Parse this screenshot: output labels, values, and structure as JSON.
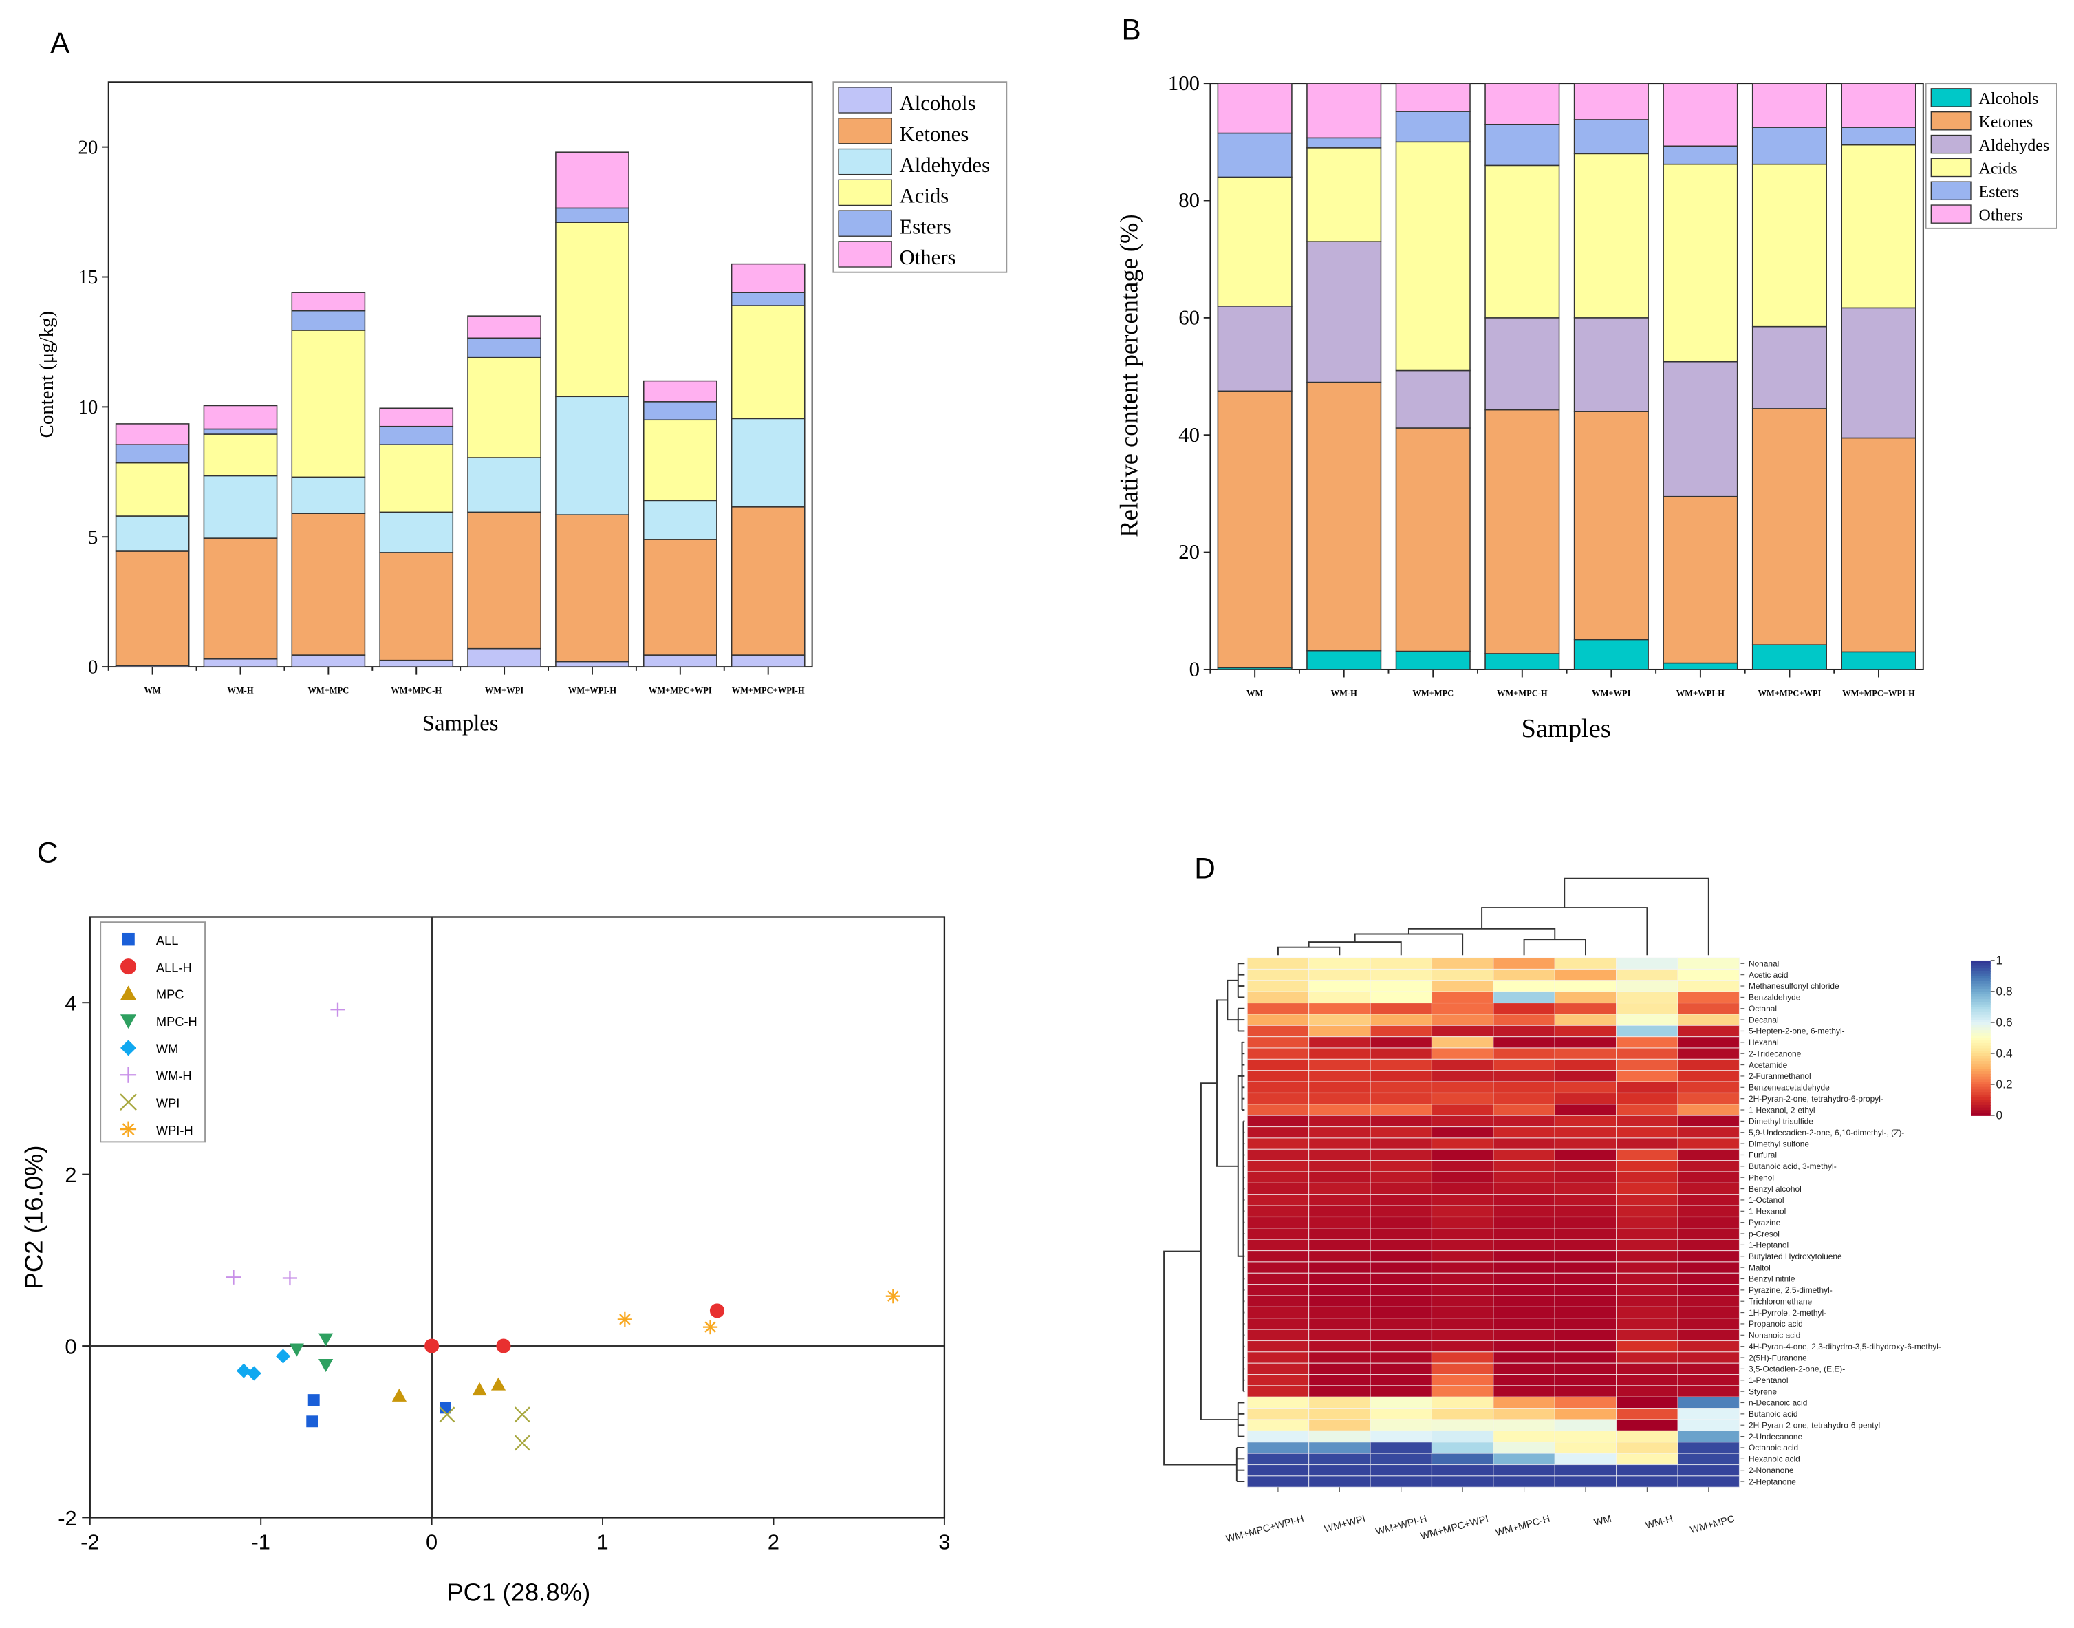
{
  "panels": {
    "a": "A",
    "b": "B",
    "c": "C",
    "d": "D"
  },
  "chart_data": [
    {
      "panel": "A",
      "type": "bar",
      "stacked": true,
      "xlabel": "Samples",
      "ylabel": "Content (μg/kg)",
      "ylim": [
        0,
        22.5
      ],
      "yticks": [
        0,
        5,
        10,
        15,
        20
      ],
      "legend_position": "top-right",
      "categories": [
        "WM",
        "WM-H",
        "WM+MPC",
        "WM+MPC-H",
        "WM+WPI",
        "WM+WPI-H",
        "WM+MPC+WPI",
        "WM+MPC+WPI-H"
      ],
      "series": [
        {
          "name": "Alcohols",
          "color": "#c0c4f8",
          "values": [
            0.05,
            0.3,
            0.45,
            0.25,
            0.7,
            0.2,
            0.45,
            0.45
          ]
        },
        {
          "name": "Ketones",
          "color": "#f4a86a",
          "values": [
            4.4,
            4.65,
            5.45,
            4.15,
            5.25,
            5.65,
            4.45,
            5.7
          ]
        },
        {
          "name": "Aldehydes",
          "color": "#bde8f8",
          "values": [
            1.35,
            2.4,
            1.4,
            1.55,
            2.1,
            4.55,
            1.5,
            3.4
          ]
        },
        {
          "name": "Acids",
          "color": "#ffff9c",
          "values": [
            2.05,
            1.6,
            5.65,
            2.6,
            3.85,
            6.7,
            3.1,
            4.35
          ]
        },
        {
          "name": "Esters",
          "color": "#9ab4f0",
          "values": [
            0.7,
            0.2,
            0.75,
            0.7,
            0.75,
            0.55,
            0.7,
            0.5
          ]
        },
        {
          "name": "Others",
          "color": "#ffb0f0",
          "values": [
            0.8,
            0.9,
            0.7,
            0.7,
            0.85,
            2.15,
            0.8,
            1.1
          ]
        }
      ]
    },
    {
      "panel": "B",
      "type": "bar",
      "stacked": true,
      "xlabel": "Samples",
      "ylabel": "Relative content percentage (%)",
      "ylim": [
        0,
        100
      ],
      "yticks": [
        0,
        20,
        40,
        60,
        80,
        100
      ],
      "legend_position": "top-right",
      "categories": [
        "WM",
        "WM-H",
        "WM+MPC",
        "WM+MPC-H",
        "WM+WPI",
        "WM+WPI-H",
        "WM+MPC+WPI",
        "WM+MPC+WPI-H"
      ],
      "series": [
        {
          "name": "Alcohols",
          "color": "#00c8c8",
          "values": [
            0.3,
            3.2,
            3.1,
            2.7,
            5.1,
            1.1,
            4.2,
            3.0
          ]
        },
        {
          "name": "Ketones",
          "color": "#f4a86a",
          "values": [
            47.2,
            45.8,
            38.1,
            41.6,
            38.9,
            28.4,
            40.3,
            36.5
          ]
        },
        {
          "name": "Aldehydes",
          "color": "#c0b0d8",
          "values": [
            14.5,
            24.0,
            9.8,
            15.7,
            16.0,
            23.0,
            14.0,
            22.2
          ]
        },
        {
          "name": "Acids",
          "color": "#ffffa0",
          "values": [
            22.0,
            16.0,
            39.0,
            26.0,
            28.0,
            33.7,
            27.7,
            27.8
          ]
        },
        {
          "name": "Esters",
          "color": "#9ab4f0",
          "values": [
            7.5,
            1.7,
            5.2,
            7.0,
            5.8,
            3.1,
            6.3,
            3.0
          ]
        },
        {
          "name": "Others",
          "color": "#ffb0f0",
          "values": [
            8.5,
            9.3,
            4.8,
            7.0,
            6.2,
            10.7,
            7.5,
            7.5
          ]
        }
      ]
    },
    {
      "panel": "C",
      "type": "scatter",
      "xlabel": "PC1 (28.8%)",
      "ylabel": "PC2 (16.0%)",
      "xlim": [
        -2,
        3
      ],
      "ylim": [
        -2,
        5
      ],
      "xticks": [
        -2,
        -1,
        0,
        1,
        2,
        3
      ],
      "yticks": [
        -2,
        0,
        2,
        4
      ],
      "legend_position": "top-left",
      "series": [
        {
          "name": "ALL",
          "marker": "square",
          "color": "#1a5fd8",
          "points": [
            [
              -0.69,
              -0.63
            ],
            [
              -0.7,
              -0.88
            ],
            [
              0.08,
              -0.72
            ]
          ]
        },
        {
          "name": "ALL-H",
          "marker": "circle",
          "color": "#e83030",
          "points": [
            [
              0.0,
              0.0
            ],
            [
              0.42,
              0.0
            ],
            [
              1.67,
              0.41
            ]
          ]
        },
        {
          "name": "MPC",
          "marker": "triangle-up",
          "color": "#c8960a",
          "points": [
            [
              -0.19,
              -0.58
            ],
            [
              0.28,
              -0.51
            ],
            [
              0.39,
              -0.45
            ]
          ]
        },
        {
          "name": "MPC-H",
          "marker": "triangle-down",
          "color": "#2ea060",
          "points": [
            [
              -0.62,
              0.08
            ],
            [
              -0.79,
              -0.04
            ],
            [
              -0.62,
              -0.22
            ]
          ]
        },
        {
          "name": "WM",
          "marker": "diamond",
          "color": "#10a8f0",
          "points": [
            [
              -1.1,
              -0.29
            ],
            [
              -1.04,
              -0.32
            ],
            [
              -0.87,
              -0.12
            ]
          ]
        },
        {
          "name": "WM-H",
          "marker": "plus",
          "color": "#c890e8",
          "points": [
            [
              -1.16,
              0.8
            ],
            [
              -0.83,
              0.79
            ],
            [
              -0.55,
              3.92
            ]
          ]
        },
        {
          "name": "WPI",
          "marker": "x",
          "color": "#a8a840",
          "points": [
            [
              0.09,
              -0.8
            ],
            [
              0.53,
              -0.8
            ],
            [
              0.53,
              -1.13
            ]
          ]
        },
        {
          "name": "WPI-H",
          "marker": "asterisk",
          "color": "#f8a820",
          "points": [
            [
              1.13,
              0.31
            ],
            [
              1.63,
              0.22
            ],
            [
              2.7,
              0.58
            ]
          ]
        }
      ]
    },
    {
      "panel": "D",
      "type": "heatmap",
      "colormap": "RdYlBu reversed",
      "colorbar_ticks": [
        "1",
        "0.8",
        "0.6",
        "0.4",
        "0.2",
        "0"
      ],
      "clim": [
        0,
        1
      ],
      "columns": [
        "WM+MPC+WPI-H",
        "WM+WPI",
        "WM+WPI-H",
        "WM+MPC+WPI",
        "WM+MPC-H",
        "WM",
        "WM-H",
        "WM+MPC"
      ],
      "rows": [
        "Nonanal",
        "Acetic acid",
        "Methanesulfonyl chloride",
        "Benzaldehyde",
        "Octanal",
        "Decanal",
        "5-Hepten-2-one, 6-methyl-",
        "Hexanal",
        "2-Tridecanone",
        "Acetamide",
        "2-Furanmethanol",
        "Benzeneacetaldehyde",
        "2H-Pyran-2-one, tetrahydro-6-propyl-",
        "1-Hexanol, 2-ethyl-",
        "Dimethyl trisulfide",
        "5,9-Undecadien-2-one, 6,10-dimethyl-, (Z)-",
        "Dimethyl sulfone",
        "Furfural",
        "Butanoic acid, 3-methyl-",
        "Phenol",
        "Benzyl alcohol",
        "1-Octanol",
        "1-Hexanol",
        "Pyrazine",
        "p-Cresol",
        "1-Heptanol",
        "Butylated Hydroxytoluene",
        "Maltol",
        "Benzyl nitrile",
        "Pyrazine, 2,5-dimethyl-",
        "Trichloromethane",
        "1H-Pyrrole, 2-methyl-",
        "Propanoic acid",
        "Nonanoic acid",
        "4H-Pyran-4-one, 2,3-dihydro-3,5-dihydroxy-6-methyl-",
        "2(5H)-Furanone",
        "3,5-Octadien-2-one, (E,E)-",
        "1-Pentanol",
        "Styrene",
        "n-Decanoic acid",
        "Butanoic acid",
        "2H-Pyran-2-one, tetrahydro-6-pentyl-",
        "2-Undecanone",
        "Octanoic acid",
        "Hexanoic acid",
        "2-Nonanone",
        "2-Heptanone"
      ],
      "values": [
        [
          0.42,
          0.47,
          0.45,
          0.36,
          0.28,
          0.43,
          0.58,
          0.52
        ],
        [
          0.43,
          0.45,
          0.46,
          0.43,
          0.37,
          0.3,
          0.44,
          0.5
        ],
        [
          0.42,
          0.5,
          0.5,
          0.36,
          0.5,
          0.5,
          0.53,
          0.47
        ],
        [
          0.37,
          0.47,
          0.5,
          0.2,
          0.72,
          0.33,
          0.44,
          0.2
        ],
        [
          0.18,
          0.2,
          0.15,
          0.2,
          0.1,
          0.15,
          0.43,
          0.16
        ],
        [
          0.3,
          0.36,
          0.3,
          0.24,
          0.18,
          0.35,
          0.52,
          0.38
        ],
        [
          0.15,
          0.3,
          0.13,
          0.05,
          0.05,
          0.08,
          0.72,
          0.06
        ],
        [
          0.15,
          0.06,
          0.02,
          0.34,
          0.01,
          0.01,
          0.2,
          0.01
        ],
        [
          0.13,
          0.09,
          0.07,
          0.21,
          0.14,
          0.15,
          0.15,
          0.02
        ],
        [
          0.1,
          0.12,
          0.12,
          0.07,
          0.12,
          0.09,
          0.17,
          0.09
        ],
        [
          0.1,
          0.11,
          0.09,
          0.06,
          0.06,
          0.04,
          0.2,
          0.1
        ],
        [
          0.11,
          0.11,
          0.12,
          0.12,
          0.11,
          0.12,
          0.08,
          0.12
        ],
        [
          0.12,
          0.12,
          0.12,
          0.14,
          0.12,
          0.08,
          0.1,
          0.15
        ],
        [
          0.17,
          0.2,
          0.2,
          0.09,
          0.16,
          0.01,
          0.14,
          0.25
        ],
        [
          0.02,
          0.04,
          0.03,
          0.05,
          0.05,
          0.08,
          0.07,
          0.01
        ],
        [
          0.04,
          0.06,
          0.07,
          0.01,
          0.08,
          0.08,
          0.09,
          0.06
        ],
        [
          0.07,
          0.06,
          0.05,
          0.08,
          0.05,
          0.06,
          0.05,
          0.08
        ],
        [
          0.05,
          0.05,
          0.05,
          0.01,
          0.07,
          0.01,
          0.14,
          0.02
        ],
        [
          0.06,
          0.05,
          0.06,
          0.03,
          0.06,
          0.05,
          0.1,
          0.04
        ],
        [
          0.05,
          0.04,
          0.05,
          0.02,
          0.05,
          0.04,
          0.08,
          0.03
        ],
        [
          0.04,
          0.05,
          0.04,
          0.03,
          0.04,
          0.05,
          0.09,
          0.04
        ],
        [
          0.05,
          0.04,
          0.03,
          0.04,
          0.03,
          0.04,
          0.07,
          0.03
        ],
        [
          0.04,
          0.03,
          0.03,
          0.05,
          0.03,
          0.03,
          0.06,
          0.03
        ],
        [
          0.03,
          0.03,
          0.02,
          0.04,
          0.02,
          0.02,
          0.05,
          0.02
        ],
        [
          0.03,
          0.02,
          0.02,
          0.03,
          0.02,
          0.02,
          0.04,
          0.02
        ],
        [
          0.03,
          0.02,
          0.02,
          0.03,
          0.02,
          0.02,
          0.04,
          0.02
        ],
        [
          0.02,
          0.02,
          0.01,
          0.03,
          0.01,
          0.01,
          0.03,
          0.01
        ],
        [
          0.02,
          0.01,
          0.01,
          0.02,
          0.01,
          0.01,
          0.03,
          0.01
        ],
        [
          0.02,
          0.01,
          0.01,
          0.02,
          0.01,
          0.01,
          0.03,
          0.01
        ],
        [
          0.02,
          0.01,
          0.01,
          0.02,
          0.01,
          0.01,
          0.03,
          0.01
        ],
        [
          0.02,
          0.01,
          0.01,
          0.02,
          0.01,
          0.01,
          0.03,
          0.02
        ],
        [
          0.03,
          0.02,
          0.01,
          0.02,
          0.01,
          0.01,
          0.04,
          0.02
        ],
        [
          0.03,
          0.02,
          0.02,
          0.02,
          0.01,
          0.01,
          0.04,
          0.02
        ],
        [
          0.04,
          0.03,
          0.02,
          0.03,
          0.02,
          0.01,
          0.05,
          0.02
        ],
        [
          0.05,
          0.03,
          0.02,
          0.03,
          0.01,
          0.01,
          0.1,
          0.06
        ],
        [
          0.06,
          0.02,
          0.02,
          0.12,
          0.01,
          0.01,
          0.06,
          0.05
        ],
        [
          0.06,
          0.01,
          0.01,
          0.15,
          0.01,
          0.01,
          0.02,
          0.02
        ],
        [
          0.07,
          0.01,
          0.01,
          0.2,
          0.01,
          0.01,
          0.02,
          0.02
        ],
        [
          0.07,
          0.01,
          0.01,
          0.22,
          0.01,
          0.01,
          0.02,
          0.02
        ],
        [
          0.48,
          0.42,
          0.52,
          0.46,
          0.28,
          0.22,
          0.0,
          0.88
        ],
        [
          0.42,
          0.4,
          0.48,
          0.4,
          0.37,
          0.3,
          0.15,
          0.6
        ],
        [
          0.48,
          0.38,
          0.53,
          0.54,
          0.54,
          0.57,
          0.0,
          0.6
        ],
        [
          0.6,
          0.57,
          0.6,
          0.62,
          0.48,
          0.48,
          0.46,
          0.82
        ],
        [
          0.85,
          0.85,
          0.97,
          0.7,
          0.56,
          0.47,
          0.42,
          0.97
        ],
        [
          0.97,
          0.97,
          0.97,
          0.92,
          0.78,
          0.6,
          0.47,
          0.97
        ],
        [
          0.98,
          0.98,
          0.98,
          0.98,
          0.98,
          0.98,
          0.98,
          0.98
        ],
        [
          0.98,
          0.98,
          0.98,
          0.98,
          0.98,
          0.98,
          0.98,
          0.98
        ]
      ]
    }
  ]
}
